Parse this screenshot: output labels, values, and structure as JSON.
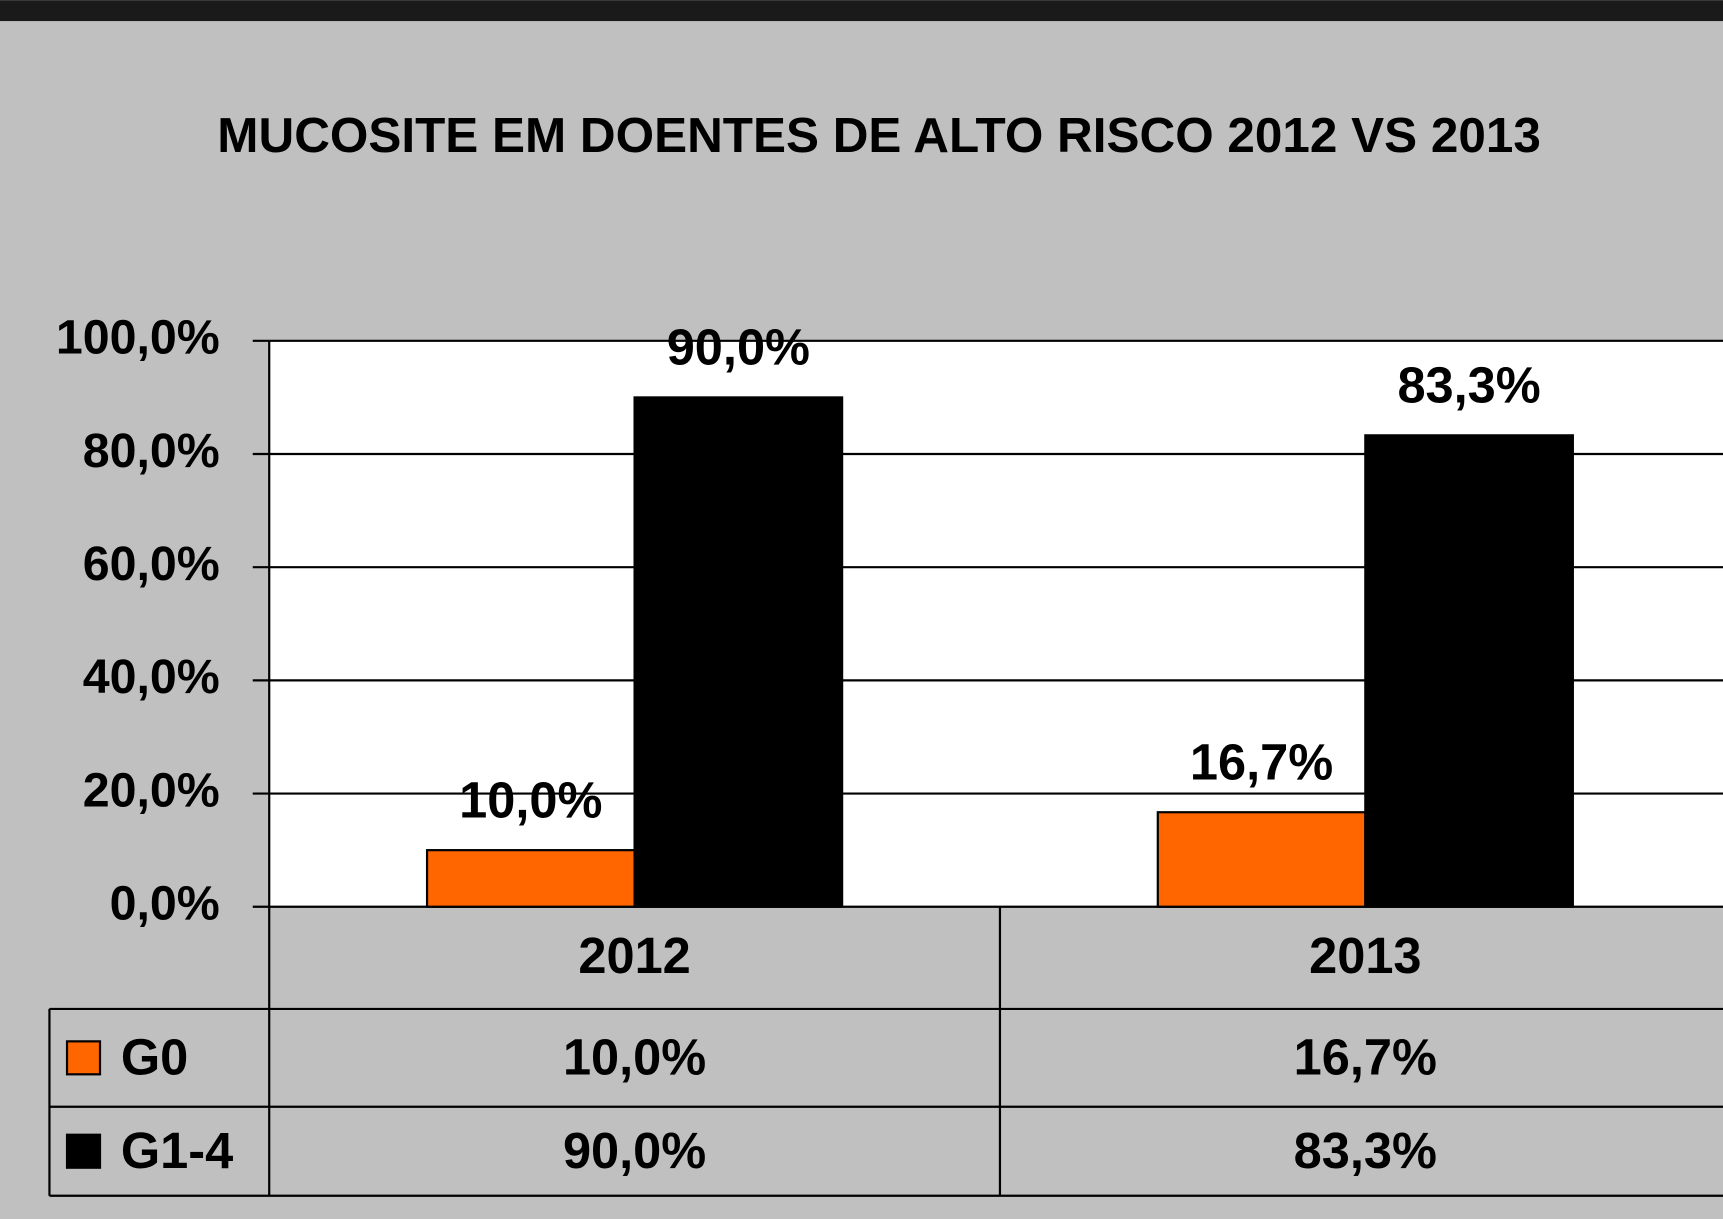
{
  "chart_data": {
    "type": "bar",
    "title": "MUCOSITE EM DOENTES DE ALTO RISCO 2012 VS 2013",
    "categories": [
      "2012",
      "2013"
    ],
    "series": [
      {
        "name": "G0",
        "color": "#ff6600",
        "values": [
          10,
          16.7
        ],
        "value_labels": [
          "10,0%",
          "16,7%"
        ]
      },
      {
        "name": "G1-4",
        "color": "#000000",
        "values": [
          90,
          83.3
        ],
        "value_labels": [
          "90,0%",
          "83,3%"
        ]
      }
    ],
    "ylim": [
      0,
      100
    ],
    "yticks": [
      {
        "value": 0,
        "label": "0,0%"
      },
      {
        "value": 20,
        "label": "20,0%"
      },
      {
        "value": 40,
        "label": "40,0%"
      },
      {
        "value": 60,
        "label": "60,0%"
      },
      {
        "value": 80,
        "label": "80,0%"
      },
      {
        "value": 100,
        "label": "100,0%"
      }
    ],
    "grid": true
  }
}
